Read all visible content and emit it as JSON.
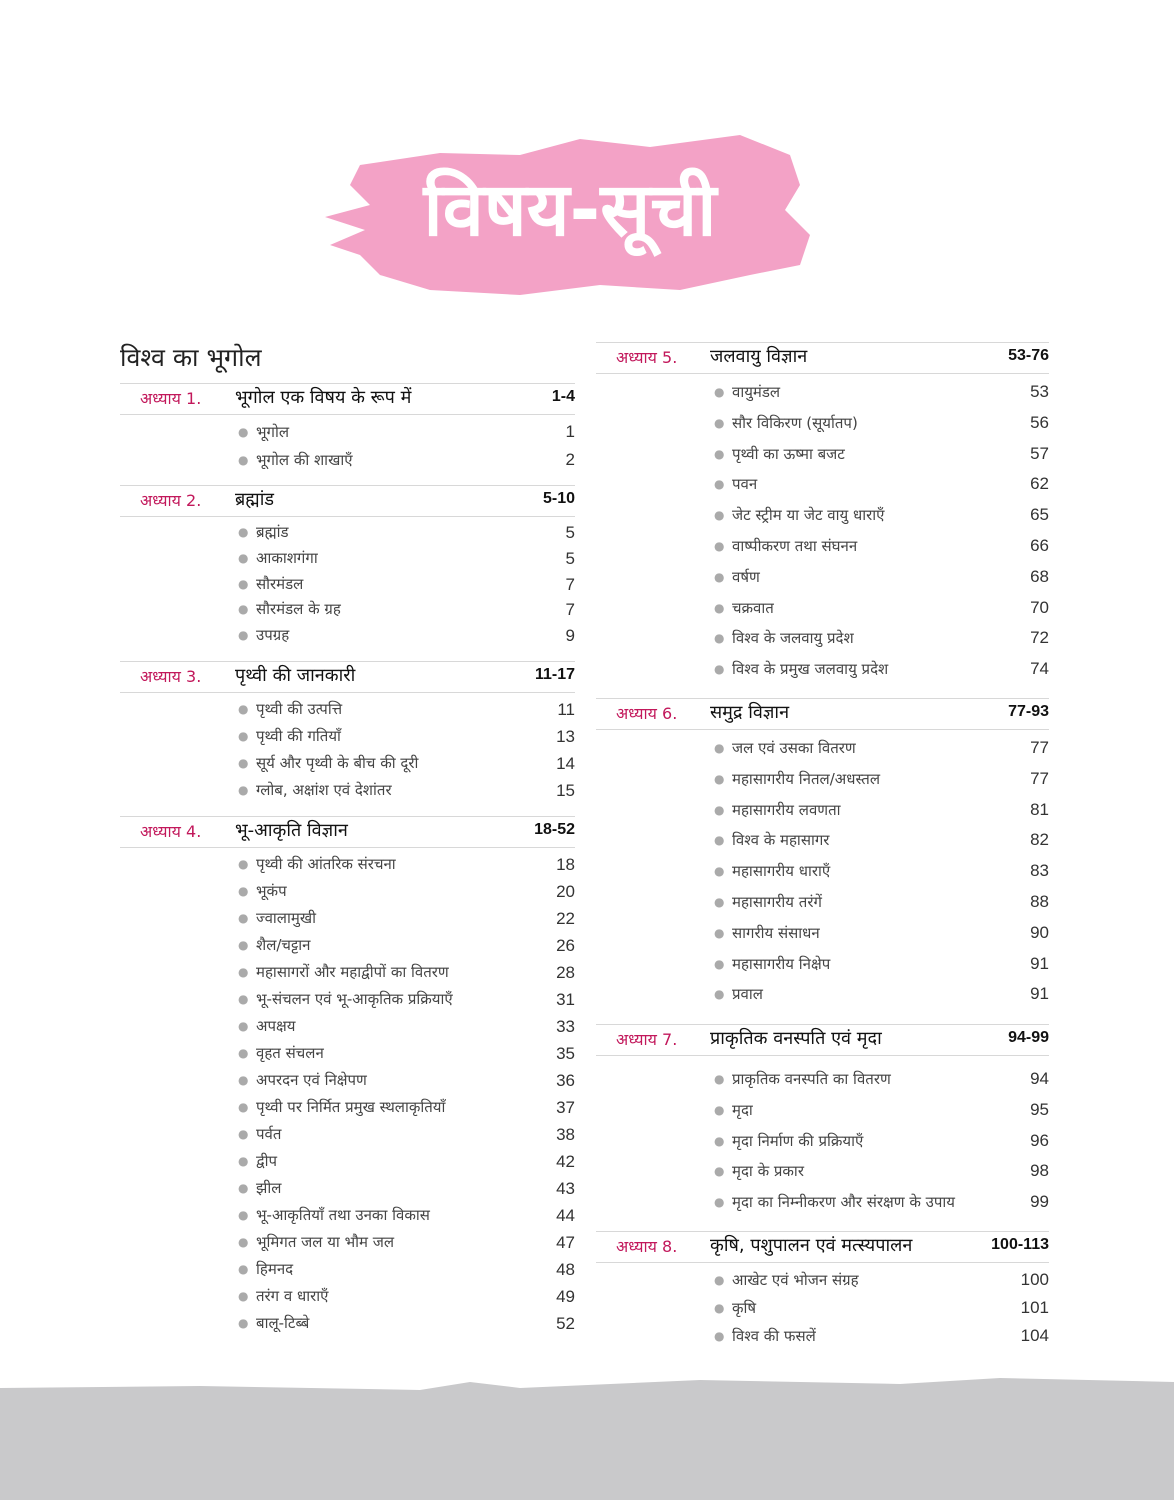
{
  "title": "विषय-सूची",
  "section": "विश्व का भूगोल",
  "colors": {
    "banner": "#f3a2c6",
    "chapter_label": "#c2185b",
    "bottom_band": "#c9c9cb"
  },
  "chapters": [
    {
      "label": "अध्याय 1.",
      "title": "भूगोल एक विषय के रूप में",
      "pages": "1-4",
      "items": [
        {
          "text": "भूगोल",
          "page": "1"
        },
        {
          "text": "भूगोल की शाखाएँ",
          "page": "2"
        }
      ]
    },
    {
      "label": "अध्याय 2.",
      "title": "ब्रह्मांड",
      "pages": "5-10",
      "items": [
        {
          "text": "ब्रह्मांड",
          "page": "5"
        },
        {
          "text": "आकाशगंगा",
          "page": "5"
        },
        {
          "text": "सौरमंडल",
          "page": "7"
        },
        {
          "text": "सौरमंडल के ग्रह",
          "page": "7"
        },
        {
          "text": "उपग्रह",
          "page": "9"
        }
      ]
    },
    {
      "label": "अध्याय 3.",
      "title": "पृथ्वी की जानकारी",
      "pages": "11-17",
      "items": [
        {
          "text": "पृथ्वी की उत्पत्ति",
          "page": "11"
        },
        {
          "text": "पृथ्वी की गतियाँ",
          "page": "13"
        },
        {
          "text": "सूर्य और पृथ्वी के बीच की दूरी",
          "page": "14"
        },
        {
          "text": "ग्लोब, अक्षांश एवं देशांतर",
          "page": "15"
        }
      ]
    },
    {
      "label": "अध्याय 4.",
      "title": "भू-आकृति विज्ञान",
      "pages": "18-52",
      "items": [
        {
          "text": "पृथ्वी की आंतरिक संरचना",
          "page": "18"
        },
        {
          "text": "भूकंप",
          "page": "20"
        },
        {
          "text": "ज्वालामुखी",
          "page": "22"
        },
        {
          "text": "शैल/चट्टान",
          "page": "26"
        },
        {
          "text": "महासागरों और महाद्वीपों का वितरण",
          "page": "28"
        },
        {
          "text": "भू-संचलन एवं भू-आकृतिक प्रक्रियाएँ",
          "page": "31"
        },
        {
          "text": "अपक्षय",
          "page": "33"
        },
        {
          "text": "वृहत संचलन",
          "page": "35"
        },
        {
          "text": "अपरदन एवं निक्षेपण",
          "page": "36"
        },
        {
          "text": "पृथ्वी पर निर्मित प्रमुख स्थलाकृतियाँ",
          "page": "37"
        },
        {
          "text": "पर्वत",
          "page": "38"
        },
        {
          "text": "द्वीप",
          "page": "42"
        },
        {
          "text": "झील",
          "page": "43"
        },
        {
          "text": "भू-आकृतियाँ तथा उनका विकास",
          "page": "44"
        },
        {
          "text": "भूमिगत जल या भौम जल",
          "page": "47"
        },
        {
          "text": "हिमनद",
          "page": "48"
        },
        {
          "text": "तरंग व धाराएँ",
          "page": "49"
        },
        {
          "text": "बालू-टिब्बे",
          "page": "52"
        }
      ]
    },
    {
      "label": "अध्याय 5.",
      "title": "जलवायु विज्ञान",
      "pages": "53-76",
      "items": [
        {
          "text": "वायुमंडल",
          "page": "53"
        },
        {
          "text": "सौर विकिरण (सूर्यातप)",
          "page": "56"
        },
        {
          "text": "पृथ्वी का ऊष्मा बजट",
          "page": "57"
        },
        {
          "text": "पवन",
          "page": "62"
        },
        {
          "text": "जेट स्ट्रीम या जेट वायु धाराएँ",
          "page": "65"
        },
        {
          "text": "वाष्पीकरण तथा संघनन",
          "page": "66"
        },
        {
          "text": "वर्षण",
          "page": "68"
        },
        {
          "text": "चक्रवात",
          "page": "70"
        },
        {
          "text": "विश्व के  जलवायु प्रदेश",
          "page": "72"
        },
        {
          "text": "विश्व के प्रमुख जलवायु प्रदेश",
          "page": "74"
        }
      ]
    },
    {
      "label": "अध्याय 6.",
      "title": "समुद्र विज्ञान",
      "pages": "77-93",
      "items": [
        {
          "text": "जल एवं उसका वितरण",
          "page": "77"
        },
        {
          "text": "महासागरीय नितल/अधस्तल",
          "page": "77"
        },
        {
          "text": "महासागरीय लवणता",
          "page": "81"
        },
        {
          "text": "विश्व के महासागर",
          "page": "82"
        },
        {
          "text": "महासागरीय धाराएँ",
          "page": "83"
        },
        {
          "text": "महासागरीय तरंगें",
          "page": "88"
        },
        {
          "text": "सागरीय संसाधन",
          "page": "90"
        },
        {
          "text": "महासागरीय निक्षेप",
          "page": "91"
        },
        {
          "text": "प्रवाल",
          "page": "91"
        }
      ]
    },
    {
      "label": "अध्याय 7.",
      "title": "प्राकृतिक वनस्पति एवं मृदा",
      "pages": "94-99",
      "items": [
        {
          "text": "प्राकृतिक वनस्पति का वितरण",
          "page": "94"
        },
        {
          "text": "मृदा",
          "page": "95"
        },
        {
          "text": "मृदा निर्माण की प्रक्रियाएँ",
          "page": "96"
        },
        {
          "text": "मृदा के प्रकार",
          "page": "98"
        },
        {
          "text": "मृदा का निम्नीकरण और संरक्षण के उपाय",
          "page": "99"
        }
      ]
    },
    {
      "label": "अध्याय 8.",
      "title": "कृषि, पशुपालन एवं मत्स्यपालन",
      "pages": "100-113",
      "items": [
        {
          "text": "आखेट एवं भोजन संग्रह",
          "page": "100"
        },
        {
          "text": "कृषि",
          "page": "101"
        },
        {
          "text": "विश्व की फसलें",
          "page": "104"
        }
      ]
    }
  ]
}
